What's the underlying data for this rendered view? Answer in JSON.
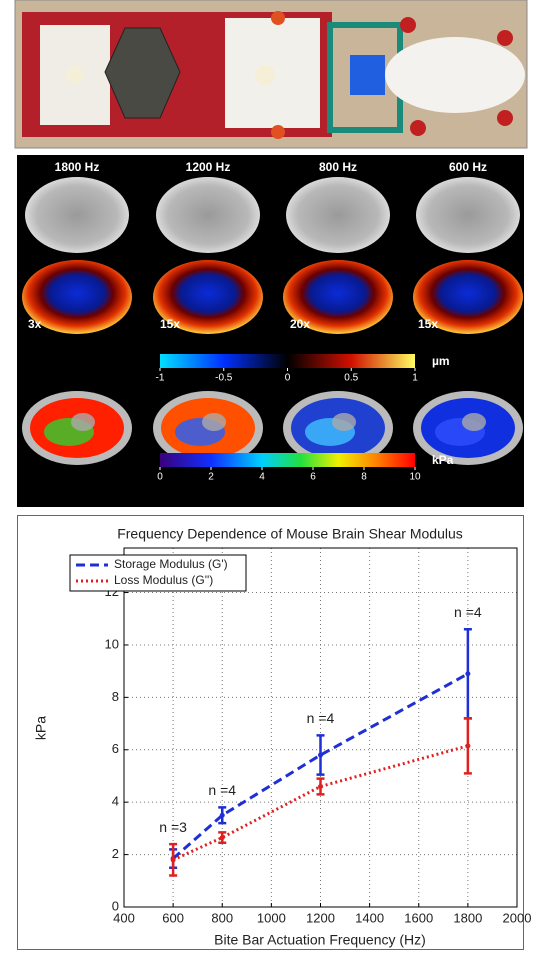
{
  "mri_panel": {
    "frequencies": [
      "1800 Hz",
      "1200 Hz",
      "800 Hz",
      "600 Hz"
    ],
    "amplifications": [
      "3x",
      "15x",
      "20x",
      "15x"
    ],
    "displacement_colorbar": {
      "lim": [
        -1,
        1
      ],
      "ticks": [
        -1,
        -0.5,
        0,
        0.5,
        1
      ],
      "unit": "µm"
    },
    "modulus_colorbar": {
      "lim": [
        0,
        10
      ],
      "ticks": [
        0,
        2,
        4,
        6,
        8,
        10
      ],
      "unit": "kPa"
    }
  },
  "chart_data": {
    "type": "line",
    "title": "Frequency Dependence of Mouse Brain Shear Modulus",
    "x_label": "Bite Bar Actuation Frequency (Hz)",
    "y_label": "kPa",
    "x": [
      600,
      800,
      1200,
      1800
    ],
    "series": [
      {
        "name": "Storage Modulus (G')",
        "color": "#1f2fd6",
        "dash": "dashed",
        "values": [
          1.85,
          3.5,
          5.8,
          8.9
        ],
        "errors": [
          0.35,
          0.3,
          0.75,
          1.7
        ]
      },
      {
        "name": "Loss Modulus (G'')",
        "color": "#e0201f",
        "dash": "dotted",
        "values": [
          1.8,
          2.65,
          4.6,
          6.15
        ],
        "errors": [
          0.6,
          0.2,
          0.3,
          1.05
        ]
      }
    ],
    "annotations": [
      "n =3",
      "n =4",
      "n =4",
      "n =4"
    ],
    "xlim": [
      400,
      2000
    ],
    "xticks": [
      400,
      600,
      800,
      1000,
      1200,
      1400,
      1600,
      1800,
      2000
    ],
    "ylim": [
      0,
      13.7
    ],
    "yticks": [
      0,
      2,
      4,
      6,
      8,
      10,
      12
    ],
    "grid": true,
    "legend": "top-left"
  }
}
